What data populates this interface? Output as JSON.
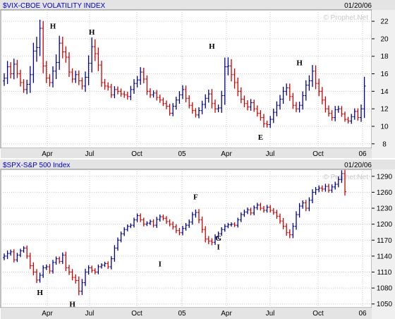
{
  "chart_data": [
    {
      "type": "ohlc",
      "title": "$VIX-CBOE VOLATILITY INDEX",
      "date": "01/20/06",
      "watermark": "© Prophet.Net",
      "x_tick_labels": [
        "Apr",
        "Jul",
        "Oct",
        "05",
        "Apr",
        "Jul",
        "Oct",
        "06"
      ],
      "y_ticks": [
        8,
        10,
        12,
        14,
        16,
        18,
        20,
        22
      ],
      "ylim": [
        7.5,
        23.3
      ],
      "up_color": "#00008b",
      "down_color": "#cc0000",
      "annotations": [
        {
          "label": "H",
          "week": 15,
          "value": 21.5
        },
        {
          "label": "H",
          "week": 27,
          "value": 20.8
        },
        {
          "label": "H",
          "week": 64,
          "value": 19.2
        },
        {
          "label": "E",
          "week": 79,
          "value": 8.8
        },
        {
          "label": "H",
          "week": 91,
          "value": 17.3
        }
      ],
      "closes": [
        15.5,
        16.8,
        16.0,
        17.1,
        16.0,
        15.0,
        14.2,
        14.8,
        15.9,
        18.6,
        19.0,
        21.2,
        16.9,
        15.5,
        15.0,
        16.3,
        17.3,
        19.5,
        18.5,
        17.9,
        16.2,
        15.4,
        15.9,
        15.2,
        14.6,
        15.6,
        17.2,
        19.1,
        18.3,
        17.0,
        15.0,
        14.6,
        14.5,
        13.6,
        14.2,
        14.0,
        13.7,
        13.6,
        13.4,
        14.2,
        14.9,
        15.3,
        16.2,
        15.4,
        14.0,
        13.6,
        13.8,
        13.3,
        13.0,
        12.6,
        12.3,
        11.5,
        12.3,
        13.0,
        13.6,
        14.2,
        13.2,
        12.4,
        11.8,
        11.3,
        11.8,
        12.5,
        13.2,
        13.7,
        12.6,
        12.0,
        12.1,
        13.5,
        16.8,
        16.9,
        15.9,
        15.0,
        14.0,
        13.1,
        12.6,
        12.2,
        12.7,
        12.0,
        11.5,
        11.0,
        10.3,
        10.2,
        10.8,
        11.6,
        12.4,
        13.1,
        14.0,
        14.4,
        13.4,
        12.4,
        12.0,
        12.4,
        13.5,
        14.7,
        15.2,
        16.3,
        14.9,
        14.0,
        13.0,
        12.0,
        11.5,
        11.0,
        11.9,
        12.0,
        11.4,
        10.8,
        10.6,
        11.1,
        11.7,
        11.0,
        12.0,
        14.6
      ],
      "ranges": [
        1.6,
        1.9,
        1.5,
        1.8,
        1.4,
        1.3,
        1.1,
        1.5,
        2.8,
        2.7,
        3.5,
        2.8,
        2.4,
        1.6,
        1.3,
        1.6,
        2.6,
        2.4,
        2.1,
        1.8,
        1.6,
        1.2,
        1.3,
        1.4,
        1.1,
        1.9,
        2.6,
        3.0,
        2.4,
        2.0,
        1.4,
        1.2,
        1.2,
        1.0,
        1.1,
        1.0,
        0.9,
        1.0,
        1.0,
        1.2,
        1.4,
        1.3,
        1.6,
        1.4,
        1.2,
        1.0,
        0.9,
        1.0,
        0.9,
        0.8,
        1.0,
        0.8,
        1.0,
        1.1,
        1.2,
        1.4,
        1.3,
        1.0,
        1.0,
        0.8,
        1.1,
        1.2,
        1.3,
        1.4,
        1.6,
        1.3,
        1.1,
        1.6,
        3.0,
        2.8,
        2.2,
        2.0,
        1.6,
        1.3,
        1.2,
        1.1,
        1.2,
        1.0,
        1.1,
        1.0,
        1.2,
        1.0,
        1.1,
        1.2,
        1.3,
        1.4,
        1.5,
        1.4,
        1.4,
        1.2,
        1.1,
        1.2,
        1.4,
        1.6,
        1.8,
        2.0,
        1.9,
        1.6,
        1.4,
        1.2,
        1.1,
        1.0,
        1.2,
        1.0,
        0.9,
        0.8,
        0.8,
        0.9,
        1.0,
        1.0,
        1.4,
        3.0
      ]
    },
    {
      "type": "ohlc",
      "title": "$SPX-S&P 500 Index",
      "date": "01/20/06",
      "watermark": "© Prophet.Net",
      "x_tick_labels": [
        "Apr",
        "Jul",
        "Oct",
        "05",
        "Apr",
        "Jul",
        "Oct",
        "06"
      ],
      "y_ticks": [
        1050,
        1080,
        1110,
        1140,
        1170,
        1200,
        1230,
        1260,
        1290
      ],
      "ylim": [
        1043,
        1303
      ],
      "up_color": "#00008b",
      "down_color": "#cc0000",
      "annotations": [
        {
          "label": "H",
          "week": 11,
          "value": 1072
        },
        {
          "label": "H",
          "week": 21,
          "value": 1050
        },
        {
          "label": "I",
          "week": 48,
          "value": 1126
        },
        {
          "label": "F",
          "week": 59,
          "value": 1252
        },
        {
          "label": "G",
          "week": 66,
          "value": 1174
        },
        {
          "label": "I",
          "week": 66,
          "value": 1158
        }
      ],
      "closes": [
        1140,
        1145,
        1148,
        1133,
        1142,
        1150,
        1155,
        1140,
        1122,
        1110,
        1095,
        1104,
        1118,
        1120,
        1112,
        1128,
        1135,
        1130,
        1142,
        1118,
        1110,
        1100,
        1094,
        1074,
        1090,
        1110,
        1118,
        1113,
        1110,
        1120,
        1123,
        1126,
        1120,
        1135,
        1155,
        1170,
        1182,
        1190,
        1196,
        1198,
        1208,
        1216,
        1208,
        1200,
        1202,
        1205,
        1198,
        1209,
        1214,
        1211,
        1205,
        1200,
        1195,
        1188,
        1184,
        1192,
        1198,
        1204,
        1218,
        1222,
        1208,
        1190,
        1172,
        1168,
        1166,
        1176,
        1182,
        1190,
        1196,
        1199,
        1200,
        1198,
        1208,
        1218,
        1223,
        1227,
        1221,
        1231,
        1236,
        1230,
        1226,
        1232,
        1226,
        1222,
        1215,
        1206,
        1196,
        1184,
        1180,
        1196,
        1218,
        1234,
        1240,
        1230,
        1245,
        1260,
        1265,
        1268,
        1266,
        1271,
        1264,
        1270,
        1275,
        1284,
        1295,
        1261
      ],
      "ranges": [
        14,
        16,
        12,
        14,
        12,
        11,
        10,
        14,
        18,
        18,
        16,
        14,
        14,
        12,
        14,
        14,
        12,
        12,
        14,
        18,
        16,
        16,
        16,
        22,
        20,
        18,
        14,
        12,
        12,
        12,
        10,
        10,
        12,
        14,
        16,
        14,
        12,
        12,
        10,
        10,
        12,
        12,
        12,
        12,
        10,
        10,
        12,
        14,
        12,
        12,
        12,
        12,
        14,
        14,
        14,
        14,
        12,
        14,
        14,
        16,
        18,
        18,
        18,
        16,
        16,
        14,
        12,
        12,
        12,
        10,
        10,
        10,
        12,
        12,
        12,
        12,
        12,
        12,
        12,
        12,
        12,
        12,
        12,
        12,
        14,
        14,
        16,
        16,
        18,
        18,
        18,
        16,
        14,
        16,
        16,
        16,
        14,
        14,
        14,
        14,
        14,
        14,
        14,
        16,
        18,
        20
      ]
    }
  ]
}
